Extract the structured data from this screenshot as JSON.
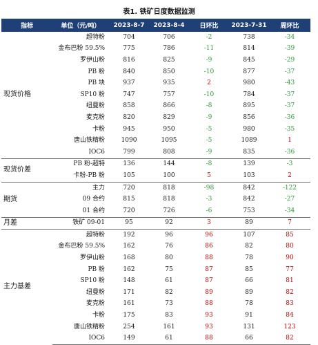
{
  "title": "表1. 铁矿日度数据监测",
  "headers": [
    "指标",
    "单位（元/吨）",
    "2023-8-7",
    "2023-8-4",
    "日环比",
    "2023-7-31",
    "周环比"
  ],
  "groups": [
    {
      "label": "现货价格",
      "rows": [
        {
          "name": "超特粉",
          "v1": "704",
          "v2": "706",
          "d": "-2",
          "v3": "738",
          "w": "-34"
        },
        {
          "name": "金布巴粉 59.5%",
          "v1": "775",
          "v2": "786",
          "d": "-11",
          "v3": "814",
          "w": "-39"
        },
        {
          "name": "罗伊山粉",
          "v1": "816",
          "v2": "825",
          "d": "-9",
          "v3": "845",
          "w": "-29"
        },
        {
          "name": "PB 粉",
          "v1": "840",
          "v2": "850",
          "d": "-10",
          "v3": "877",
          "w": "-37"
        },
        {
          "name": "PB 块",
          "v1": "937",
          "v2": "935",
          "d": "2",
          "v3": "980",
          "w": "-43"
        },
        {
          "name": "SP10 粉",
          "v1": "747",
          "v2": "757",
          "d": "-10",
          "v3": "784",
          "w": "-37"
        },
        {
          "name": "纽曼粉",
          "v1": "858",
          "v2": "866",
          "d": "-8",
          "v3": "895",
          "w": "-37"
        },
        {
          "name": "麦克粉",
          "v1": "820",
          "v2": "829",
          "d": "-9",
          "v3": "856",
          "w": "-36"
        },
        {
          "name": "卡粉",
          "v1": "945",
          "v2": "950",
          "d": "-5",
          "v3": "980",
          "w": "-35"
        },
        {
          "name": "唐山铁精粉",
          "v1": "1090",
          "v2": "1095",
          "d": "-5",
          "v3": "1089",
          "w": "1"
        },
        {
          "name": "IOC6",
          "v1": "799",
          "v2": "808",
          "d": "-9",
          "v3": "835",
          "w": "-36"
        }
      ]
    },
    {
      "label": "现货价差",
      "rows": [
        {
          "name": "PB 粉-超特",
          "v1": "136",
          "v2": "144",
          "d": "-8",
          "v3": "139",
          "w": "-3"
        },
        {
          "name": "卡粉-PB 粉",
          "v1": "105",
          "v2": "100",
          "d": "5",
          "v3": "103",
          "w": "2"
        }
      ]
    },
    {
      "label": "期货",
      "rows": [
        {
          "name": "主力",
          "v1": "720",
          "v2": "818",
          "d": "-98",
          "v3": "842",
          "w": "-122"
        },
        {
          "name": "09 合约",
          "v1": "815",
          "v2": "818",
          "d": "-3",
          "v3": "842",
          "w": "-27"
        },
        {
          "name": "01 合约",
          "v1": "720",
          "v2": "726",
          "d": "-6",
          "v3": "753",
          "w": "-34"
        }
      ]
    },
    {
      "label": "月差",
      "rows": [
        {
          "name": "铁矿 09-01",
          "v1": "95",
          "v2": "92",
          "d": "3",
          "v3": "89",
          "w": "7"
        }
      ]
    },
    {
      "label": "主力基差",
      "rows": [
        {
          "name": "超特粉",
          "v1": "192",
          "v2": "96",
          "d": "96",
          "v3": "107",
          "w": "85"
        },
        {
          "name": "金布巴粉 59.5%",
          "v1": "162",
          "v2": "76",
          "d": "86",
          "v3": "82",
          "w": "80"
        },
        {
          "name": "罗伊山粉",
          "v1": "168",
          "v2": "80",
          "d": "88",
          "v3": "78",
          "w": "90"
        },
        {
          "name": "PB 粉",
          "v1": "162",
          "v2": "75",
          "d": "87",
          "v3": "85",
          "w": "77"
        },
        {
          "name": "SP10 粉",
          "v1": "148",
          "v2": "61",
          "d": "87",
          "v3": "66",
          "w": "81"
        },
        {
          "name": "纽曼粉",
          "v1": "171",
          "v2": "82",
          "d": "89",
          "v3": "89",
          "w": "82"
        },
        {
          "name": "麦克粉",
          "v1": "161",
          "v2": "73",
          "d": "88",
          "v3": "78",
          "w": "83"
        },
        {
          "name": "卡粉",
          "v1": "175",
          "v2": "83",
          "d": "93",
          "v3": "91",
          "w": "84"
        },
        {
          "name": "唐山铁精粉",
          "v1": "254",
          "v2": "161",
          "d": "93",
          "v3": "131",
          "w": "123"
        },
        {
          "name": "IOC6",
          "v1": "149",
          "v2": "61",
          "d": "88",
          "v3": "66",
          "w": "82"
        }
      ]
    }
  ],
  "colors": {
    "header_bg": "#1f3f77",
    "positive": "#c00000",
    "negative": "#2e9a3a"
  }
}
